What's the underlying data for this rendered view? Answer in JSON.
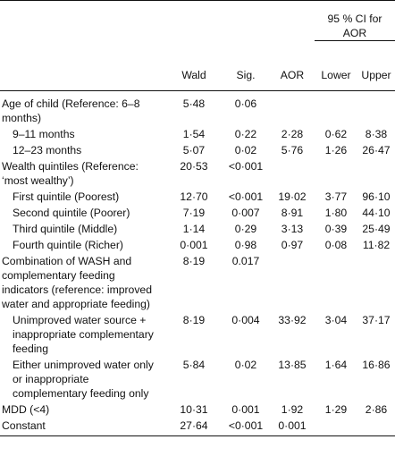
{
  "header": {
    "ci_group": [
      "95 % CI for",
      "AOR"
    ],
    "columns": [
      "Wald",
      "Sig.",
      "AOR",
      "Lower",
      "Upper"
    ]
  },
  "rows": [
    {
      "label": "Age of child (Reference: 6–8 months)",
      "indent": false,
      "wald": "5·48",
      "sig": "0·06",
      "aor": "",
      "lower": "",
      "upper": ""
    },
    {
      "label": "9–11 months",
      "indent": true,
      "wald": "1·54",
      "sig": "0·22",
      "aor": "2·28",
      "lower": "0·62",
      "upper": "8·38"
    },
    {
      "label": "12–23 months",
      "indent": true,
      "wald": "5·07",
      "sig": "0·02",
      "aor": "5·76",
      "lower": "1·26",
      "upper": "26·47"
    },
    {
      "label": "Wealth quintiles (Reference: ‘most wealthy’)",
      "indent": false,
      "wald": "20·53",
      "sig": "<0·001",
      "aor": "",
      "lower": "",
      "upper": ""
    },
    {
      "label": "First quintile (Poorest)",
      "indent": true,
      "wald": "12·70",
      "sig": "<0·001",
      "aor": "19·02",
      "lower": "3·77",
      "upper": "96·10"
    },
    {
      "label": "Second quintile (Poorer)",
      "indent": true,
      "wald": "7·19",
      "sig": "0·007",
      "aor": "8·91",
      "lower": "1·80",
      "upper": "44·10"
    },
    {
      "label": "Third quintile (Middle)",
      "indent": true,
      "wald": "1·14",
      "sig": "0·29",
      "aor": "3·13",
      "lower": "0·39",
      "upper": "25·49"
    },
    {
      "label": "Fourth quintile (Richer)",
      "indent": true,
      "wald": "0·001",
      "sig": "0·98",
      "aor": "0·97",
      "lower": "0·08",
      "upper": "11·82"
    },
    {
      "label": "Combination of WASH and complementary feeding indicators (reference: improved water and appropriate feeding)",
      "indent": false,
      "wald": "8·19",
      "sig": "0.017",
      "aor": "",
      "lower": "",
      "upper": ""
    },
    {
      "label": "Unimproved water source + inappropriate complementary feeding",
      "indent": true,
      "wald": "8·19",
      "sig": "0·004",
      "aor": "33·92",
      "lower": "3·04",
      "upper": "37·17"
    },
    {
      "label": "Either unimproved water only or inappropriate complementary feeding only",
      "indent": true,
      "wald": "5·84",
      "sig": "0·02",
      "aor": "13·85",
      "lower": "1·64",
      "upper": "16·86"
    },
    {
      "label": "MDD (<4)",
      "indent": false,
      "wald": "10·31",
      "sig": "0·001",
      "aor": "1·92",
      "lower": "1·29",
      "upper": "2·86"
    },
    {
      "label": "Constant",
      "indent": false,
      "wald": "27·64",
      "sig": "<0·001",
      "aor": "0·001",
      "lower": "",
      "upper": ""
    }
  ]
}
